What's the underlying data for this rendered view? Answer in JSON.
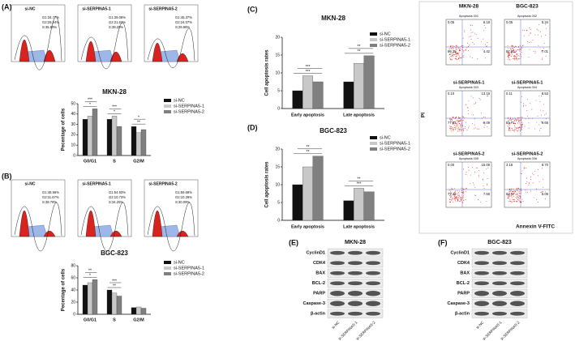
{
  "panel_labels": [
    "(A)",
    "(B)",
    "(C)",
    "(D)",
    "(E)",
    "(F)"
  ],
  "histograms": {
    "A": [
      {
        "title": "si-NC",
        "stats": [
          "G1:34.77%",
          "G2:29.24%",
          "S:35.99%"
        ]
      },
      {
        "title": "si-SERPINA5-1",
        "stats": [
          "G1:39.08%",
          "G2:21.63%",
          "S:39.20%"
        ]
      },
      {
        "title": "si-SERPINA5-2",
        "stats": [
          "G1:45.37%",
          "G2:24.07%",
          "S:29.96%"
        ]
      }
    ],
    "B": [
      {
        "title": "si-NC",
        "stats": [
          "G1:48.56%",
          "G2:11.67%",
          "S:39.78%"
        ]
      },
      {
        "title": "si-SERPINA5-1",
        "stats": [
          "G1:54.93%",
          "G2:10.73%",
          "S:34.25%"
        ]
      },
      {
        "title": "si-SERPINA5-2",
        "stats": [
          "G1:59.69%",
          "G2:10.29%",
          "S:30.09%"
        ]
      }
    ]
  },
  "chart_data": [
    {
      "type": "bar",
      "title": "MKN-28",
      "ylabel": "Pecentage of cells",
      "categories": [
        "G0/G1",
        "S",
        "G2/M"
      ],
      "ylim": [
        0,
        50
      ],
      "yticks": [
        0,
        10,
        20,
        30,
        40,
        50
      ],
      "series": [
        {
          "name": "si-NC",
          "color": "#111111",
          "values": [
            35,
            35,
            28
          ]
        },
        {
          "name": "si-SERPINA5-1",
          "color": "#c8c8c8",
          "values": [
            38,
            38,
            22
          ]
        },
        {
          "name": "si-SERPINA5-2",
          "color": "#808080",
          "values": [
            45,
            28,
            25
          ]
        }
      ],
      "annotations": [
        "*",
        "***",
        "*",
        "***",
        "**",
        "*"
      ]
    },
    {
      "type": "bar",
      "title": "BGC-823",
      "ylabel": "Pecentage of cells",
      "categories": [
        "G0/G1",
        "S",
        "G2/M"
      ],
      "ylim": [
        0,
        80
      ],
      "yticks": [
        0,
        20,
        40,
        60,
        80
      ],
      "series": [
        {
          "name": "si-NC",
          "color": "#111111",
          "values": [
            48,
            40,
            11
          ]
        },
        {
          "name": "si-SERPINA5-1",
          "color": "#c8c8c8",
          "values": [
            52,
            35,
            12
          ]
        },
        {
          "name": "si-SERPINA5-2",
          "color": "#808080",
          "values": [
            57,
            30,
            10
          ]
        }
      ],
      "annotations": [
        "*",
        "**",
        "**",
        "***"
      ]
    },
    {
      "type": "bar",
      "title": "MKN-28",
      "ylabel": "Cell apoptosis rates",
      "categories": [
        "Early apoptosis",
        "Late apoptosis"
      ],
      "ylim": [
        0,
        20
      ],
      "yticks": [
        0,
        5,
        10,
        15,
        20
      ],
      "series": [
        {
          "name": "si-NC",
          "color": "#111111",
          "values": [
            5,
            7.5
          ]
        },
        {
          "name": "si-SERPINA5-1",
          "color": "#c8c8c8",
          "values": [
            9.2,
            12.7
          ]
        },
        {
          "name": "si-SERPINA5-2",
          "color": "#808080",
          "values": [
            7.5,
            14.8
          ]
        }
      ],
      "annotations": [
        "***",
        "***",
        "**",
        "**"
      ]
    },
    {
      "type": "bar",
      "title": "BGC-823",
      "ylabel": "Cell apoptosis rates",
      "categories": [
        "Early apoptosis",
        "Late apoptosis"
      ],
      "ylim": [
        0,
        20
      ],
      "yticks": [
        0,
        5,
        10,
        15,
        20
      ],
      "series": [
        {
          "name": "si-NC",
          "color": "#111111",
          "values": [
            10,
            5.5
          ]
        },
        {
          "name": "si-SERPINA5-1",
          "color": "#c8c8c8",
          "values": [
            15,
            9
          ]
        },
        {
          "name": "si-SERPINA5-2",
          "color": "#808080",
          "values": [
            18,
            8
          ]
        }
      ],
      "annotations": [
        "**",
        "**",
        "***",
        "**"
      ]
    }
  ],
  "flow_scatter": {
    "columns": [
      "MKN-28",
      "BGC-823"
    ],
    "y_label": "PI",
    "x_label": "Annexin V-FITC",
    "rows": [
      [
        {
          "title": "si-NC",
          "sample": "Apoptosis 001",
          "quadrants": [
            "0.05",
            "6.18",
            "89.35",
            "4.42"
          ]
        },
        {
          "title": "si-NC",
          "sample": "Apoptosis 002",
          "quadrants": [
            "0.05",
            "5.34",
            "87.60",
            "7.01"
          ]
        }
      ],
      [
        {
          "title": "si-SERPINA5-1",
          "sample": "Apoptosis 003",
          "quadrants": [
            "0.10",
            "13.18",
            "77.63",
            "9.09"
          ]
        },
        {
          "title": "si-SERPINA5-1",
          "sample": "Apoptosis 004",
          "quadrants": [
            "0.11",
            "8.53",
            "81.71",
            "9.65"
          ]
        }
      ],
      [
        {
          "title": "si-SERPINA5-2",
          "sample": "Apoptosis 005",
          "quadrants": [
            "0.00",
            "15.09",
            "77.33",
            "7.58"
          ]
        },
        {
          "title": "si-SERPINA5-2",
          "sample": "Apoptosis 006",
          "quadrants": [
            "3.18",
            "8.70",
            "82.07",
            "6.05"
          ]
        }
      ]
    ]
  },
  "western_blots": [
    {
      "title": "MKN-28",
      "proteins": [
        "CyclinD1",
        "CDK4",
        "BAX",
        "BCL-2",
        "PARP",
        "Caspase-3",
        "β-actin"
      ],
      "lanes": [
        "si-NC",
        "si-SERPINA5-1",
        "si-SERPINA5-2"
      ]
    },
    {
      "title": "BGC-823",
      "proteins": [
        "CyclinD1",
        "CDK4",
        "BAX",
        "BCL-2",
        "PARP",
        "Caspase-3",
        "β-actin"
      ],
      "lanes": [
        "si-NC",
        "si-SERPINA5-1",
        "si-SERPINA5-2"
      ]
    }
  ]
}
